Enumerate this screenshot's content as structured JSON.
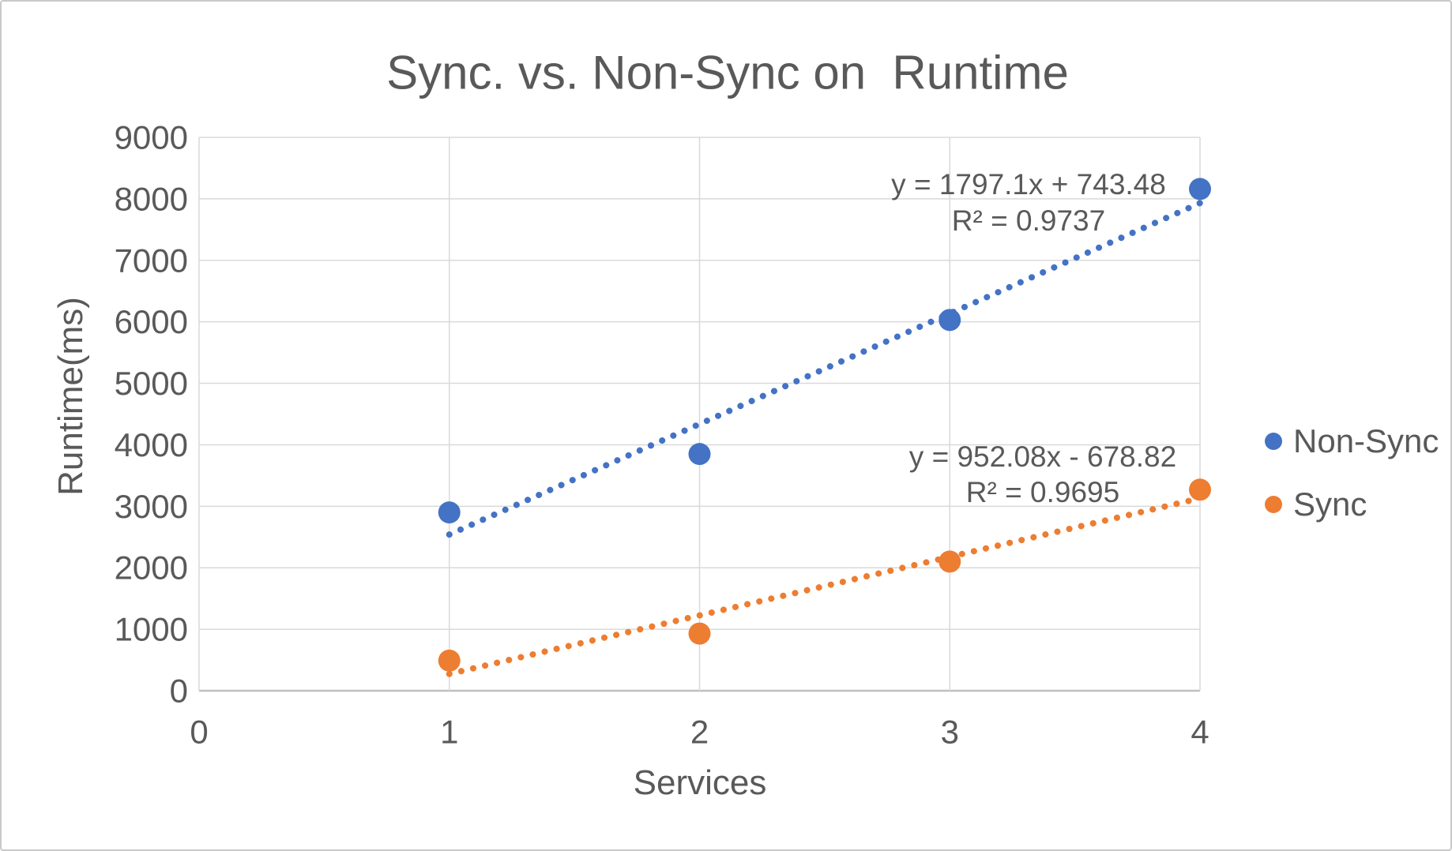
{
  "frame": {
    "background": "#ffffff",
    "border_color": "#c9c9c9"
  },
  "chart_data": {
    "type": "scatter",
    "title": "Sync. vs. Non-Sync on  Runtime",
    "xlabel": "Services",
    "ylabel": "Runtime(ms)",
    "xlim": [
      0,
      4
    ],
    "ylim": [
      0,
      9000
    ],
    "x_ticks": [
      "0",
      "1",
      "2",
      "3",
      "4"
    ],
    "y_ticks": [
      "0",
      "1000",
      "2000",
      "3000",
      "4000",
      "5000",
      "6000",
      "7000",
      "8000",
      "9000"
    ],
    "grid": true,
    "legend_position": "right-middle",
    "text_color": "#595959",
    "gridline_color": "#D9D9D9",
    "axis_color": "#BFBFBF",
    "series": [
      {
        "name": "Non-Sync",
        "color": "#4472C4",
        "x": [
          1,
          2,
          3,
          4
        ],
        "y": [
          2900,
          3850,
          6030,
          8160
        ],
        "trendline": {
          "type": "linear",
          "slope": 1797.1,
          "intercept": 743.48,
          "equation": "y = 1797.1x + 743.48",
          "r_squared": "R² = 0.9737"
        }
      },
      {
        "name": "Sync",
        "color": "#ED7D31",
        "x": [
          1,
          2,
          3,
          4
        ],
        "y": [
          490,
          930,
          2100,
          3270
        ],
        "trendline": {
          "type": "linear",
          "slope": 952.08,
          "intercept": -678.82,
          "equation": "y = 952.08x - 678.82",
          "r_squared": "R² = 0.9695"
        }
      }
    ]
  }
}
